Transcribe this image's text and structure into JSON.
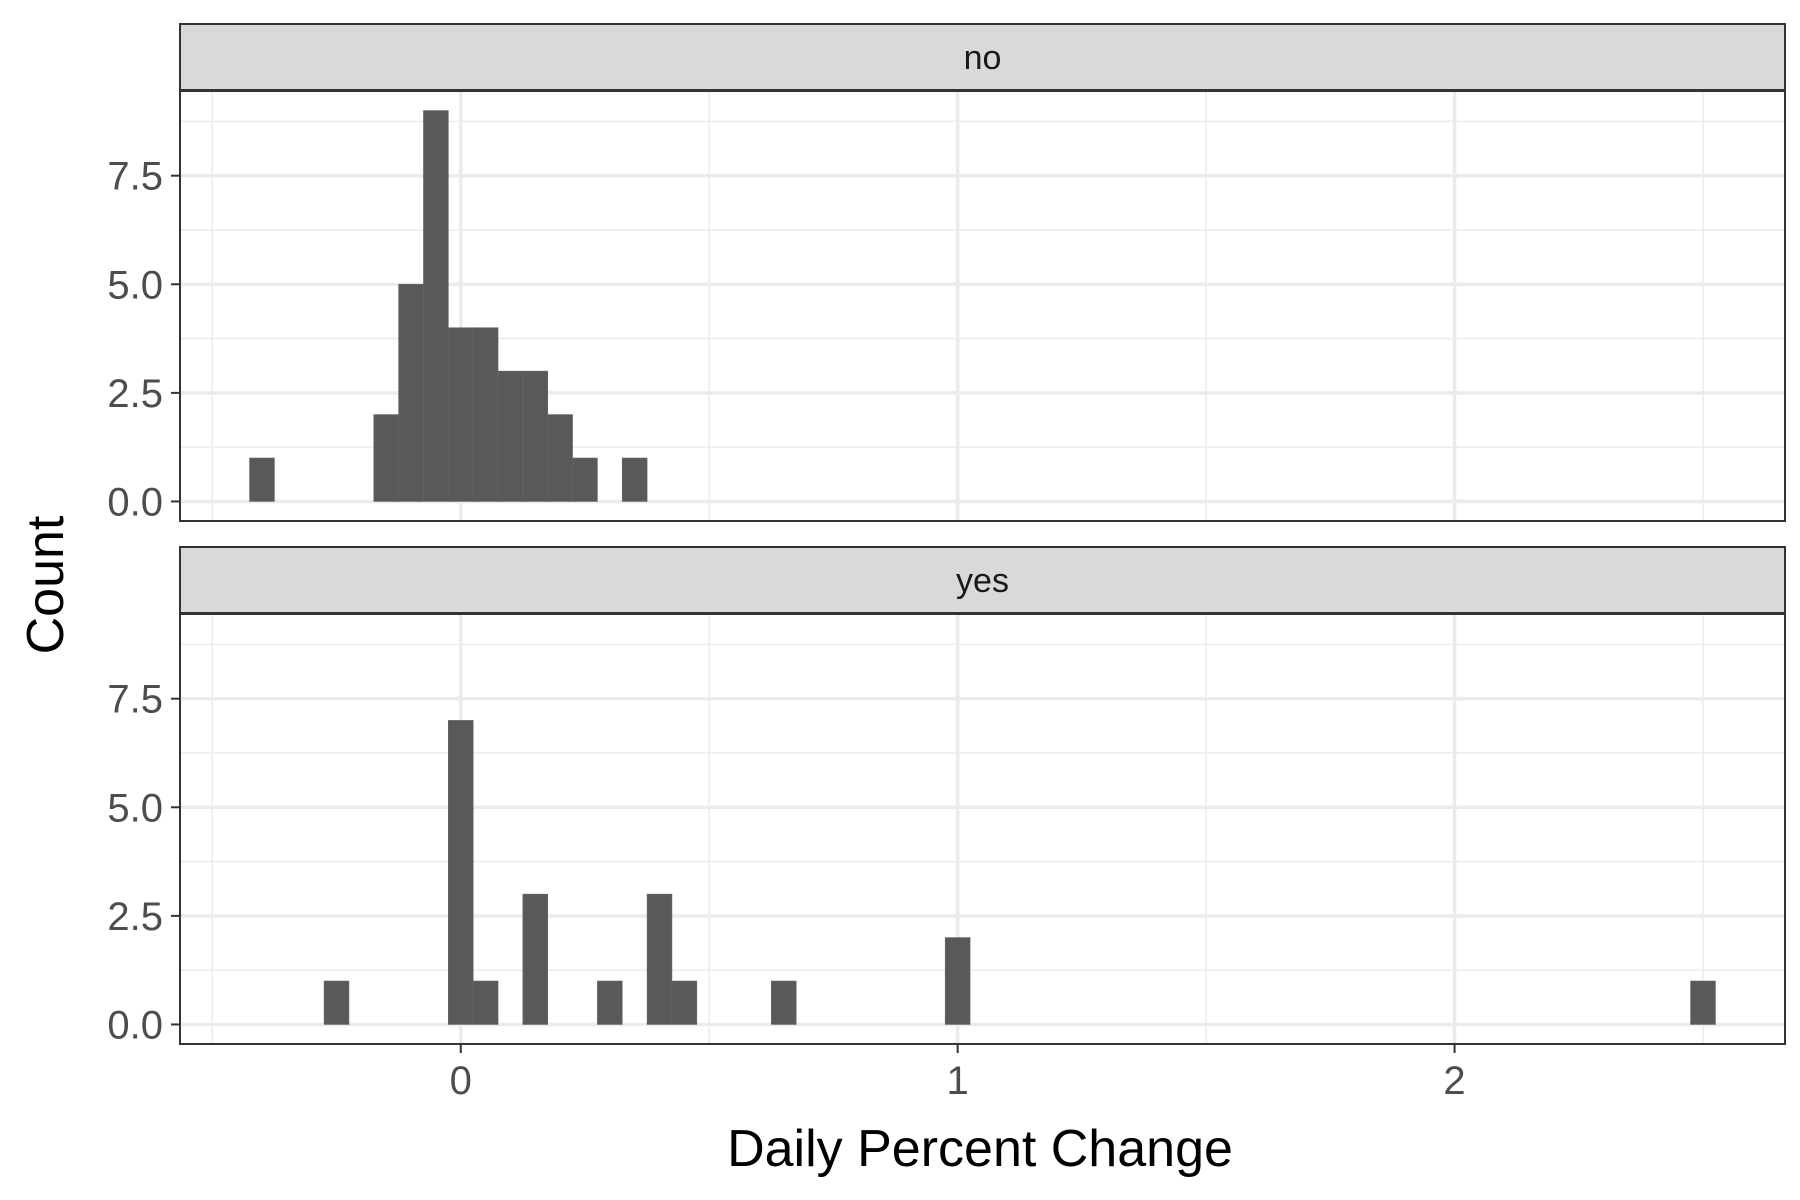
{
  "chart_data": {
    "type": "bar",
    "xlabel": "Daily Percent Change",
    "ylabel": "Count",
    "xlim": [
      -0.565,
      2.665
    ],
    "ylim": [
      -0.45,
      9.45
    ],
    "x_ticks": [
      0,
      1,
      2
    ],
    "x_tick_labels": [
      "0",
      "1",
      "2"
    ],
    "x_minor_ticks": [
      -0.5,
      0.5,
      1.5,
      2.5
    ],
    "y_ticks": [
      0,
      2.5,
      5,
      7.5
    ],
    "y_tick_labels": [
      "0.0",
      "2.5",
      "5.0",
      "7.5"
    ],
    "y_minor_ticks": [
      1.25,
      3.75,
      6.25,
      8.75
    ],
    "grid": true,
    "bar_color": "#595959",
    "strip_color": "#d9d9d9",
    "bin_width": 0.05,
    "panels": [
      {
        "label": "no",
        "bins": [
          {
            "x": -0.4,
            "count": 1
          },
          {
            "x": -0.15,
            "count": 2
          },
          {
            "x": -0.1,
            "count": 5
          },
          {
            "x": -0.05,
            "count": 9
          },
          {
            "x": 0.0,
            "count": 4
          },
          {
            "x": 0.05,
            "count": 4
          },
          {
            "x": 0.1,
            "count": 3
          },
          {
            "x": 0.15,
            "count": 3
          },
          {
            "x": 0.2,
            "count": 2
          },
          {
            "x": 0.25,
            "count": 1
          },
          {
            "x": 0.35,
            "count": 1
          }
        ]
      },
      {
        "label": "yes",
        "bins": [
          {
            "x": -0.25,
            "count": 1
          },
          {
            "x": 0.0,
            "count": 7
          },
          {
            "x": 0.05,
            "count": 1
          },
          {
            "x": 0.15,
            "count": 3
          },
          {
            "x": 0.3,
            "count": 1
          },
          {
            "x": 0.4,
            "count": 3
          },
          {
            "x": 0.45,
            "count": 1
          },
          {
            "x": 0.65,
            "count": 1
          },
          {
            "x": 1.0,
            "count": 2
          },
          {
            "x": 2.5,
            "count": 1
          }
        ]
      }
    ]
  }
}
